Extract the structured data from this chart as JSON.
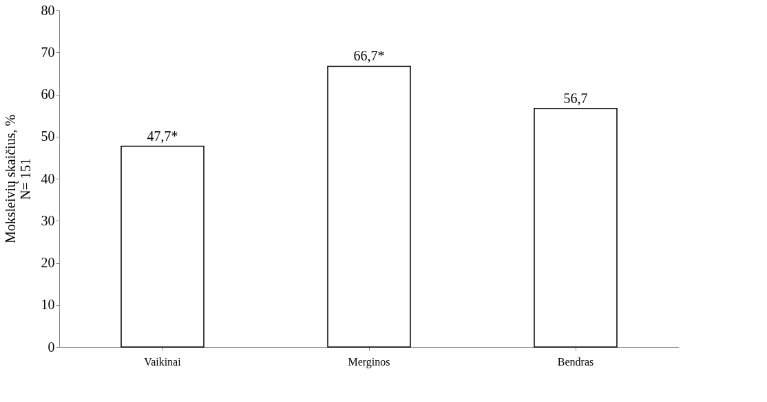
{
  "chart_data": {
    "type": "bar",
    "ylabel": "Moksleivių skaičius, %\nN= 151",
    "categories": [
      "Vaikinai",
      "Merginos",
      "Bendras"
    ],
    "values": [
      47.7,
      66.7,
      56.7
    ],
    "value_labels": [
      "47,7*",
      "66,7*",
      "56,7"
    ],
    "color": "#ffffff",
    "ylim": [
      0,
      80
    ],
    "yticks": [
      0,
      10,
      20,
      30,
      40,
      50,
      60,
      70,
      80
    ],
    "grid": false
  }
}
